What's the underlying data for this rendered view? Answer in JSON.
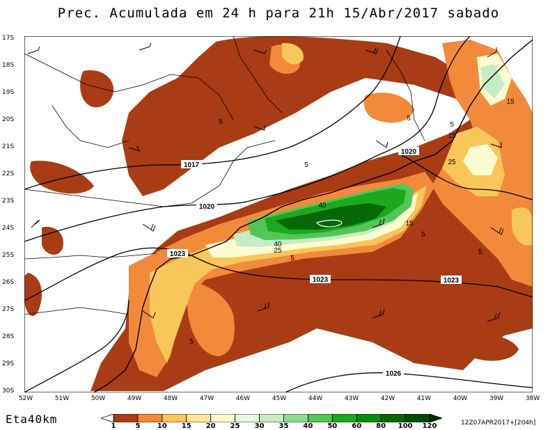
{
  "title": "Prec. Acumulada em 24 h para 21h 15/Abr/2017 sabado",
  "model": "Eta40km",
  "run_info": "12Z07APR2017+[204h]",
  "latitude_labels": [
    "17S",
    "18S",
    "19S",
    "20S",
    "21S",
    "22S",
    "23S",
    "24S",
    "25S",
    "26S",
    "27S",
    "28S",
    "29S",
    "30S"
  ],
  "longitude_labels": [
    "52W",
    "51W",
    "50W",
    "49W",
    "48W",
    "47W",
    "46W",
    "45W",
    "44W",
    "43W",
    "42W",
    "41W",
    "40W",
    "39W",
    "38W"
  ],
  "isobar_labels": [
    "1017",
    "1020",
    "1020",
    "1023",
    "1023",
    "1023",
    "1026"
  ],
  "precip_contour_labels": [
    "5",
    "5",
    "5",
    "5",
    "5",
    "5",
    "5",
    "5",
    "15",
    "15",
    "15",
    "25",
    "25",
    "40",
    "40"
  ],
  "legend": {
    "labels": [
      "1",
      "5",
      "10",
      "15",
      "20",
      "25",
      "30",
      "35",
      "40",
      "50",
      "60",
      "80",
      "100",
      "120"
    ],
    "colors": [
      "#ffffff",
      "#a83c14",
      "#f28a3c",
      "#f9c65a",
      "#fbe79a",
      "#fdfbd2",
      "#e6f8e6",
      "#c5ecc5",
      "#8fdb8f",
      "#55c655",
      "#1ea81e",
      "#0b8a0b",
      "#066806",
      "#034a03",
      "#012c01"
    ]
  }
}
